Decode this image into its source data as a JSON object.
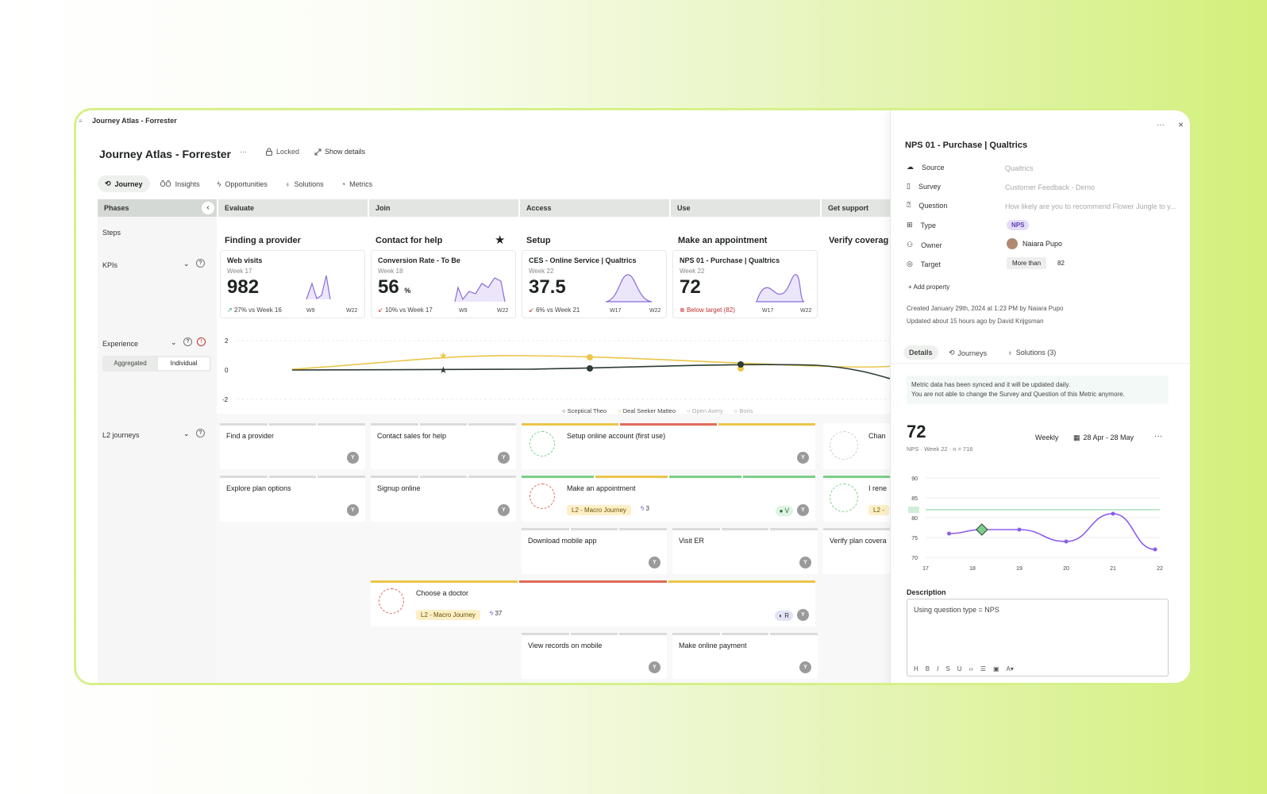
{
  "window_title": "Journey Atlas - Forrester",
  "page_title": "Journey Atlas - Forrester",
  "toolbar": {
    "more": "···",
    "locked": "Locked",
    "show_details": "Show details"
  },
  "tabs": [
    {
      "label": "Journey"
    },
    {
      "label": "Insights"
    },
    {
      "label": "Opportunities"
    },
    {
      "label": "Solutions"
    },
    {
      "label": "Metrics"
    }
  ],
  "rows": {
    "phases": "Phases",
    "steps": "Steps",
    "kpis": "KPIs",
    "experience": "Experience",
    "l2": "L2 journeys"
  },
  "experience_toggle": {
    "aggregated": "Aggregated",
    "individual": "Individual"
  },
  "phases": [
    "Evaluate",
    "Join",
    "Access",
    "Use",
    "Get support"
  ],
  "steps": [
    "Finding a provider",
    "Contact for help",
    "Setup",
    "Make an appointment",
    "Verify coverag"
  ],
  "kpis": [
    {
      "title": "Web visits",
      "week": "Week 17",
      "value": "982",
      "unit": "",
      "change": "27% vs Week 16",
      "x0": "W9",
      "x1": "W22"
    },
    {
      "title": "Conversion Rate - To Be",
      "week": "Week 18",
      "value": "56",
      "unit": "%",
      "change": "10% vs Week 17",
      "x0": "W9",
      "x1": "W22"
    },
    {
      "title": "CES - Online Service | Qualtrics",
      "week": "Week 22",
      "value": "37.5",
      "unit": "",
      "change": "6% vs Week 21",
      "x0": "W17",
      "x1": "W22"
    },
    {
      "title": "NPS 01 - Purchase | Qualtrics",
      "week": "Week 22",
      "value": "72",
      "unit": "",
      "change": "Below target (82)",
      "x0": "W17",
      "x1": "W22"
    }
  ],
  "experience_axis": [
    "2",
    "0",
    "-2"
  ],
  "legend": [
    "Sceptical Theo",
    "Deal Seeker Matteo",
    "Open Avery",
    "Boris"
  ],
  "cards": {
    "c1": "Find a provider",
    "c2": "Explore plan options",
    "c3": "Contact sales for help",
    "c4": "Signup online",
    "c5": "Setup online account (first use)",
    "c6": "Make an appointment",
    "c7": "Download mobile app",
    "c8": "Visit ER",
    "c9": "Choose a doctor",
    "c10": "View records on mobile",
    "c11": "Make online payment",
    "c12": "Chan",
    "c13": "I rene",
    "c14": "Verify plan covera",
    "tag": "L2 - Macro Journey",
    "tag_short": "L2 -",
    "n1": "3",
    "n2": "37",
    "y": "Y",
    "v": "V",
    "r": "R"
  },
  "panel": {
    "more": "···",
    "close": "×",
    "title": "NPS 01 - Purchase | Qualtrics",
    "props": [
      {
        "label": "Source",
        "value": "Qualtrics"
      },
      {
        "label": "Survey",
        "value": "Customer Feedback - Demo"
      },
      {
        "label": "Question",
        "value": "How likely are you to recommend Flower Jungle to y..."
      },
      {
        "label": "Type",
        "value": "NPS"
      },
      {
        "label": "Owner",
        "value": "Naiara Pupo"
      },
      {
        "label": "Target",
        "value": "More than"
      }
    ],
    "target_value": "82",
    "add_property": "Add property",
    "created": "Created January 29th, 2024 at 1:23 PM by Naiara Pupo",
    "updated": "Updated about 15 hours ago by David Krijgsman",
    "tabs": [
      "Details",
      "Journeys",
      "Solutions (3)"
    ],
    "note1": "Metric data has been synced and it will be updated daily.",
    "note2": "You are not able to change the Survey and Question of this Metric anymore.",
    "big_value": "72",
    "sub": "NPS · Week 22 · n = 716",
    "period": "Weekly",
    "range": "28 Apr - 28 May",
    "desc_label": "Description",
    "desc_text": "Using question type = NPS"
  },
  "chart_data": {
    "type": "line",
    "x": [
      17,
      18,
      19,
      20,
      21,
      22
    ],
    "yticks": [
      70,
      75,
      80,
      82,
      85,
      90
    ],
    "ylim": [
      70,
      90
    ],
    "target": 82,
    "series": [
      {
        "values": [
          [
            17.5,
            76
          ],
          [
            18.2,
            77
          ],
          [
            19,
            77
          ],
          [
            20,
            74
          ],
          [
            21,
            81
          ],
          [
            21.9,
            72
          ]
        ]
      }
    ],
    "legend": "none"
  }
}
